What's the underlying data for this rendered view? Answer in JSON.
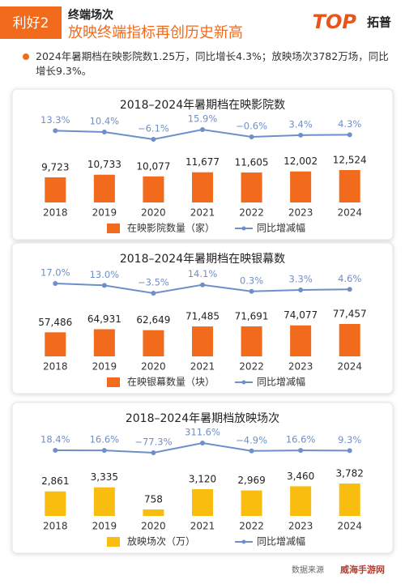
{
  "header": {
    "badge": "利好2",
    "title": "终端场次",
    "subtitle": "放映终端指标再创历史新高",
    "logo": "TOP",
    "logo_cn": "拓普"
  },
  "summary": "2024年暑期档在映影院数1.25万，同比增长4.3%；放映场次3782万场，同比增长9.3%。",
  "source": "数据来源",
  "watermark": "威海手游网",
  "chart_data": [
    {
      "type": "bar",
      "title": "2018–2024年暑期档在映影院数",
      "categories": [
        "2018",
        "2019",
        "2020",
        "2021",
        "2022",
        "2023",
        "2024"
      ],
      "series": [
        {
          "name": "在映影院数量（家）",
          "color": "#f26a1b",
          "values": [
            9723,
            10733,
            10077,
            11677,
            11605,
            12002,
            12524
          ],
          "value_labels": [
            "9,723",
            "10,733",
            "10,077",
            "11,677",
            "11,605",
            "12,002",
            "12,524"
          ]
        },
        {
          "name": "同比增减幅",
          "type": "line",
          "color": "#6f8fc9",
          "values": [
            13.3,
            10.4,
            -6.1,
            15.9,
            -0.6,
            3.4,
            4.3
          ],
          "value_labels": [
            "13.3%",
            "10.4%",
            "−6.1%",
            "15.9%",
            "−0.6%",
            "3.4%",
            "4.3%"
          ]
        }
      ]
    },
    {
      "type": "bar",
      "title": "2018–2024年暑期档在映银幕数",
      "categories": [
        "2018",
        "2019",
        "2020",
        "2021",
        "2022",
        "2023",
        "2024"
      ],
      "series": [
        {
          "name": "在映银幕数量（块）",
          "color": "#f26a1b",
          "values": [
            57486,
            64931,
            62649,
            71485,
            71691,
            74077,
            77457
          ],
          "value_labels": [
            "57,486",
            "64,931",
            "62,649",
            "71,485",
            "71,691",
            "74,077",
            "77,457"
          ]
        },
        {
          "name": "同比增减幅",
          "type": "line",
          "color": "#6f8fc9",
          "values": [
            17.0,
            13.0,
            -3.5,
            14.1,
            0.3,
            3.3,
            4.6
          ],
          "value_labels": [
            "17.0%",
            "13.0%",
            "−3.5%",
            "14.1%",
            "0.3%",
            "3.3%",
            "4.6%"
          ]
        }
      ]
    },
    {
      "type": "bar",
      "title": "2018–2024年暑期档放映场次",
      "categories": [
        "2018",
        "2019",
        "2020",
        "2021",
        "2022",
        "2023",
        "2024"
      ],
      "series": [
        {
          "name": "放映场次（万）",
          "color": "#f8bd0f",
          "values": [
            2861,
            3335,
            758,
            3120,
            2969,
            3460,
            3782
          ],
          "value_labels": [
            "2,861",
            "3,335",
            "758",
            "3,120",
            "2,969",
            "3,460",
            "3,782"
          ]
        },
        {
          "name": "同比增减幅",
          "type": "line",
          "color": "#6f8fc9",
          "values": [
            18.4,
            16.6,
            -77.3,
            311.6,
            -4.9,
            16.6,
            9.3
          ],
          "value_labels": [
            "18.4%",
            "16.6%",
            "−77.3%",
            "311.6%",
            "−4.9%",
            "16.6%",
            "9.3%"
          ]
        }
      ]
    }
  ]
}
